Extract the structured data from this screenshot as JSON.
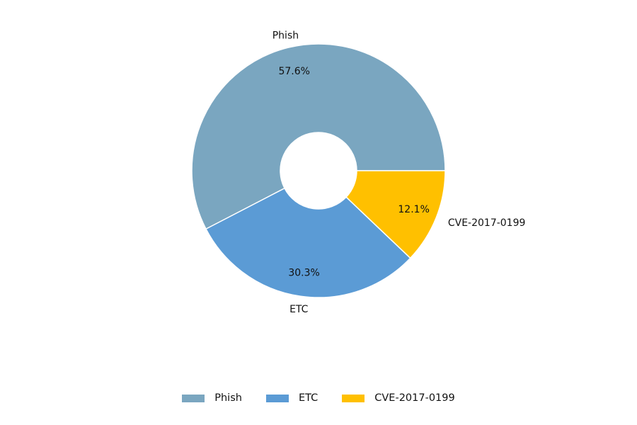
{
  "chart_data": {
    "type": "pie",
    "donut": true,
    "series": [
      {
        "name": "Phish",
        "value": 57.6,
        "label": "57.6%",
        "color": "#7aa6c0"
      },
      {
        "name": "ETC",
        "value": 30.3,
        "label": "30.3%",
        "color": "#5b9bd5"
      },
      {
        "name": "CVE-2017-0199",
        "value": 12.1,
        "label": "12.1%",
        "color": "#ffc000"
      }
    ],
    "legend_placement": "bottom"
  }
}
